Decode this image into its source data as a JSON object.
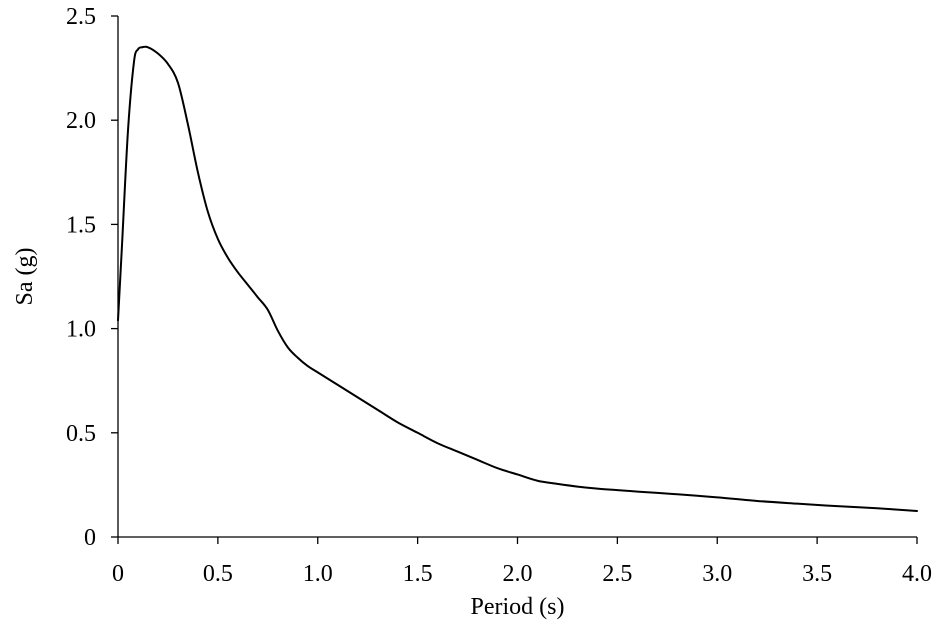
{
  "chart_data": {
    "type": "line",
    "title": "",
    "xlabel": "Period (s)",
    "ylabel": "Sa (g)",
    "xlim": [
      0,
      4.0
    ],
    "ylim": [
      0,
      2.5
    ],
    "grid": false,
    "legend": "none",
    "x_ticks": [
      {
        "value": 0,
        "label": "0"
      },
      {
        "value": 0.5,
        "label": "0.5"
      },
      {
        "value": 1.0,
        "label": "1.0"
      },
      {
        "value": 1.5,
        "label": "1.5"
      },
      {
        "value": 2.0,
        "label": "2.0"
      },
      {
        "value": 2.5,
        "label": "2.5"
      },
      {
        "value": 3.0,
        "label": "3.0"
      },
      {
        "value": 3.5,
        "label": "3.5"
      },
      {
        "value": 4.0,
        "label": "4.0"
      }
    ],
    "y_ticks": [
      {
        "value": 0,
        "label": "0"
      },
      {
        "value": 0.5,
        "label": "0.5"
      },
      {
        "value": 1.0,
        "label": "1.0"
      },
      {
        "value": 1.5,
        "label": "1.5"
      },
      {
        "value": 2.0,
        "label": "2.0"
      },
      {
        "value": 2.5,
        "label": "2.5"
      }
    ],
    "series": [
      {
        "color": "#000000",
        "x": [
          0,
          0.02,
          0.05,
          0.08,
          0.1,
          0.12,
          0.15,
          0.2,
          0.25,
          0.3,
          0.35,
          0.4,
          0.45,
          0.5,
          0.55,
          0.6,
          0.65,
          0.7,
          0.75,
          0.8,
          0.85,
          0.9,
          0.95,
          1.0,
          1.1,
          1.2,
          1.3,
          1.4,
          1.5,
          1.6,
          1.7,
          1.8,
          1.9,
          2.0,
          2.1,
          2.2,
          2.3,
          2.4,
          2.5,
          2.6,
          2.7,
          2.8,
          2.9,
          3.0,
          3.2,
          3.4,
          3.6,
          3.8,
          4.0
        ],
        "y": [
          1.04,
          1.4,
          1.95,
          2.28,
          2.34,
          2.35,
          2.35,
          2.32,
          2.27,
          2.18,
          1.98,
          1.75,
          1.56,
          1.43,
          1.34,
          1.27,
          1.21,
          1.15,
          1.09,
          0.99,
          0.91,
          0.86,
          0.82,
          0.79,
          0.73,
          0.67,
          0.61,
          0.55,
          0.5,
          0.45,
          0.41,
          0.37,
          0.33,
          0.3,
          0.27,
          0.255,
          0.242,
          0.232,
          0.225,
          0.218,
          0.212,
          0.205,
          0.198,
          0.19,
          0.173,
          0.16,
          0.148,
          0.138,
          0.125
        ]
      }
    ]
  }
}
